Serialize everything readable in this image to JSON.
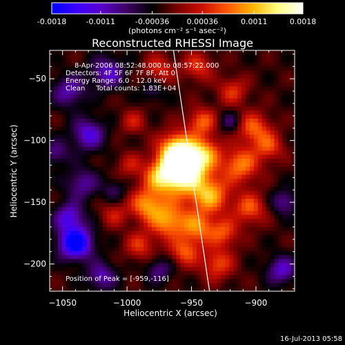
{
  "colorbar": {
    "tick_labels": [
      "-0.0018",
      "-0.0011",
      "-0.00036",
      "0.00036",
      "0.0011",
      "0.0018"
    ],
    "ticks": [
      -0.0018,
      -0.0011,
      -0.00036,
      0.00036,
      0.0011,
      0.0018
    ],
    "range": [
      -0.0018,
      0.0018
    ],
    "units_label": "(photons cm⁻² s⁻¹ asec⁻²)",
    "colors": [
      "#0000ff",
      "#3a00ff",
      "#5a00c8",
      "#3c0060",
      "#000000",
      "#7a0000",
      "#cc1000",
      "#ff5a00",
      "#ffb400",
      "#ffff80",
      "#ffffff"
    ]
  },
  "chart_data": {
    "type": "heatmap",
    "title": "Reconstructed RHESSI Image",
    "xlabel": "Heliocentric X (arcsec)",
    "ylabel": "Heliocentric Y (arcsec)",
    "xlim": [
      -1060,
      -870
    ],
    "ylim": [
      -222,
      -27
    ],
    "xticks": [
      -1050,
      -1000,
      -950,
      -900
    ],
    "xtick_labels": [
      "−1050",
      "−1000",
      "−950",
      "−900"
    ],
    "yticks": [
      -50,
      -100,
      -150,
      -200
    ],
    "ytick_labels": [
      "−50",
      "−100",
      "−150",
      "−200"
    ],
    "annotations": [
      "8-Apr-2006 08:52:48.000 to 08:57:22.000",
      "Detectors: 4F 5F 6F 7F 8F, Att 0",
      "Energy Range: 6.0 - 12.0 keV",
      "Clean     Total counts: 1.83E+04"
    ],
    "peak_label": "Position of Peak = [-959,-116]",
    "peak": [
      -959,
      -116
    ],
    "blobs": [
      [
        -958,
        -118,
        10,
        1.0
      ],
      [
        -956,
        -128,
        14,
        0.8
      ],
      [
        -962,
        -105,
        9,
        0.55
      ],
      [
        -968,
        -165,
        10,
        0.65
      ],
      [
        -985,
        -152,
        9,
        0.6
      ],
      [
        -975,
        -130,
        9,
        0.5
      ],
      [
        -940,
        -110,
        9,
        0.55
      ],
      [
        -935,
        -145,
        10,
        0.62
      ],
      [
        -945,
        -170,
        9,
        0.55
      ],
      [
        -955,
        -190,
        8,
        0.48
      ],
      [
        -930,
        -200,
        9,
        0.45
      ],
      [
        -942,
        -85,
        8,
        0.5
      ],
      [
        -925,
        -175,
        8,
        0.45
      ],
      [
        -912,
        -120,
        10,
        0.58
      ],
      [
        -902,
        -90,
        9,
        0.5
      ],
      [
        -905,
        -155,
        9,
        0.48
      ],
      [
        -890,
        -105,
        8,
        0.42
      ],
      [
        -918,
        -60,
        8,
        0.38
      ],
      [
        -945,
        -40,
        8,
        0.4
      ],
      [
        -975,
        -42,
        8,
        0.36
      ],
      [
        -990,
        -185,
        8,
        0.38
      ],
      [
        -1010,
        -160,
        7,
        0.3
      ],
      [
        -995,
        -85,
        7,
        0.3
      ],
      [
        -998,
        -120,
        7,
        0.28
      ],
      [
        -1040,
        -183,
        9,
        -1.0
      ],
      [
        -1045,
        -162,
        8,
        -0.55
      ],
      [
        -1035,
        -135,
        9,
        -0.4
      ],
      [
        -1030,
        -95,
        9,
        -0.55
      ],
      [
        -1045,
        -60,
        9,
        -0.45
      ],
      [
        -1015,
        -45,
        9,
        -0.5
      ],
      [
        -980,
        -60,
        6,
        -0.25
      ],
      [
        -1020,
        -210,
        8,
        -0.45
      ],
      [
        -975,
        -205,
        7,
        -0.35
      ],
      [
        -880,
        -205,
        8,
        -0.5
      ],
      [
        -878,
        -150,
        7,
        -0.4
      ],
      [
        -920,
        -85,
        6,
        -0.3
      ],
      [
        -1055,
        -110,
        7,
        -0.35
      ],
      [
        -1010,
        -140,
        6,
        -0.25
      ]
    ],
    "limb_line": [
      [
        -964,
        -27
      ],
      [
        -936,
        -222
      ]
    ]
  },
  "footer": {
    "timestamp": "16-Jul-2013 05:58"
  }
}
